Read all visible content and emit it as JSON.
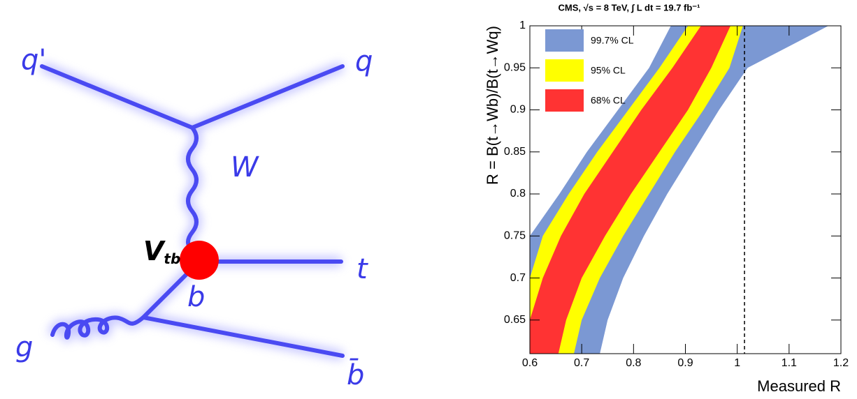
{
  "diagram": {
    "labels": {
      "q_prime": "q'",
      "q": "q",
      "W": "W",
      "vertex": {
        "symbol": "V",
        "subscript": "tb"
      },
      "t": "t",
      "b": "b",
      "g": "g",
      "b_bar": "b̄"
    }
  },
  "chart_data": {
    "type": "band",
    "title": "CMS,  √s = 8 TeV,  ∫ L dt = 19.7 fb⁻¹",
    "x_label": "Measured R",
    "y_label": "R = B(t→Wb)/B(t→Wq)",
    "xlim": [
      0.6,
      1.2
    ],
    "xticks": [
      0.6,
      0.7,
      0.8,
      0.9,
      1,
      1.1,
      1.2
    ],
    "ylim": [
      0.61,
      1
    ],
    "yticks": [
      0.65,
      0.7,
      0.75,
      0.8,
      0.85,
      0.9,
      0.95,
      1
    ],
    "legend": "top-left",
    "reference_line": 1.014,
    "series": [
      {
        "name": "99.7% CL",
        "color": "#7b98d3",
        "y": [
          0.61,
          0.65,
          0.7,
          0.75,
          0.8,
          0.85,
          0.9,
          0.95,
          1
        ],
        "lower": [
          0.6,
          0.6,
          0.6,
          0.6,
          0.657,
          0.71,
          0.77,
          0.83,
          0.872
        ],
        "upper": [
          0.735,
          0.75,
          0.78,
          0.82,
          0.865,
          0.915,
          0.965,
          1.02,
          1.176
        ]
      },
      {
        "name": "95% CL",
        "color": "#ffff00",
        "y": [
          0.61,
          0.65,
          0.7,
          0.75,
          0.8,
          0.85,
          0.9,
          0.95,
          1
        ],
        "lower": [
          0.6,
          0.6,
          0.6,
          0.625,
          0.675,
          0.73,
          0.79,
          0.85,
          0.905
        ],
        "upper": [
          0.685,
          0.7,
          0.735,
          0.78,
          0.83,
          0.88,
          0.935,
          0.985,
          1.011
        ]
      },
      {
        "name": "68% CL",
        "color": "#ff3333",
        "y": [
          0.61,
          0.65,
          0.7,
          0.75,
          0.8,
          0.85,
          0.9,
          0.95,
          1
        ],
        "lower": [
          0.6,
          0.6,
          0.625,
          0.66,
          0.705,
          0.76,
          0.815,
          0.875,
          0.93
        ],
        "upper": [
          0.655,
          0.67,
          0.7,
          0.745,
          0.795,
          0.85,
          0.905,
          0.95,
          0.987
        ]
      }
    ]
  }
}
